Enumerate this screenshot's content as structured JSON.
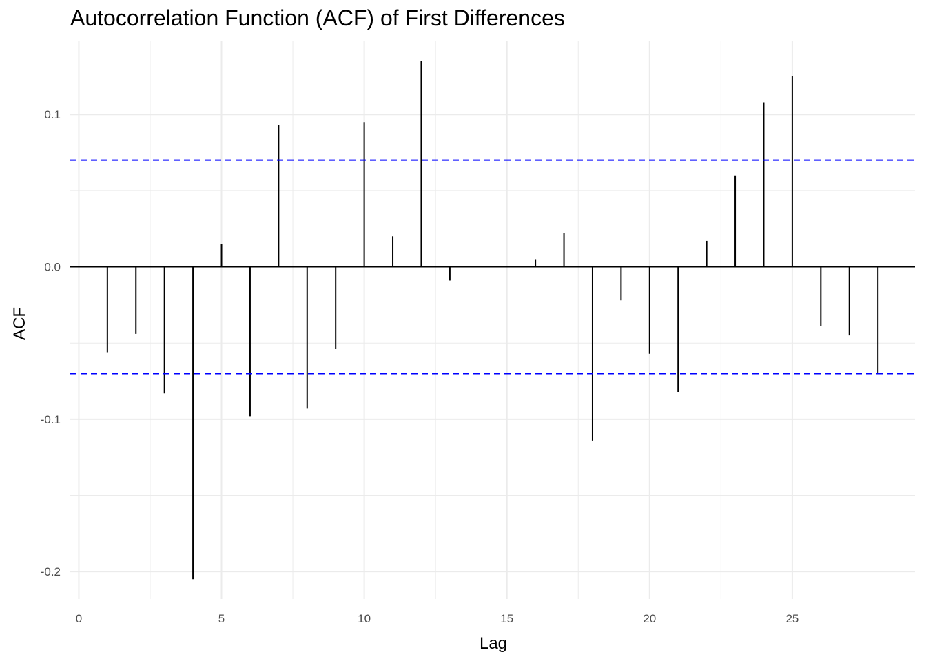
{
  "chart_data": {
    "type": "bar",
    "title": "Autocorrelation Function (ACF) of First Differences",
    "xlabel": "Lag",
    "ylabel": "ACF",
    "xlim": [
      -0.3,
      29.3
    ],
    "ylim": [
      -0.218,
      0.148
    ],
    "x_ticks": [
      0,
      5,
      10,
      15,
      20,
      25
    ],
    "x_tick_labels": [
      "0",
      "5",
      "10",
      "15",
      "20",
      "25"
    ],
    "y_ticks": [
      -0.2,
      -0.1,
      0.0,
      0.1
    ],
    "y_tick_labels": [
      "-0.2",
      "-0.1",
      "0.0",
      "0.1"
    ],
    "grid": true,
    "legend": "none",
    "confidence_bound": 0.07,
    "colors": {
      "bars": "#000000",
      "bounds": "#0000ff",
      "grid": "#ebebeb",
      "zero_line": "#000000"
    },
    "lags": [
      1,
      2,
      3,
      4,
      5,
      6,
      7,
      8,
      9,
      10,
      11,
      12,
      13,
      14,
      15,
      16,
      17,
      18,
      19,
      20,
      21,
      22,
      23,
      24,
      25,
      26,
      27,
      28
    ],
    "values": [
      -0.056,
      -0.044,
      -0.083,
      -0.205,
      0.015,
      -0.098,
      0.093,
      -0.093,
      -0.054,
      0.095,
      0.02,
      0.135,
      -0.009,
      0.0,
      0.0,
      0.005,
      0.022,
      -0.114,
      -0.022,
      -0.057,
      -0.082,
      0.017,
      0.06,
      0.108,
      0.125,
      -0.039,
      -0.045,
      -0.07
    ]
  }
}
